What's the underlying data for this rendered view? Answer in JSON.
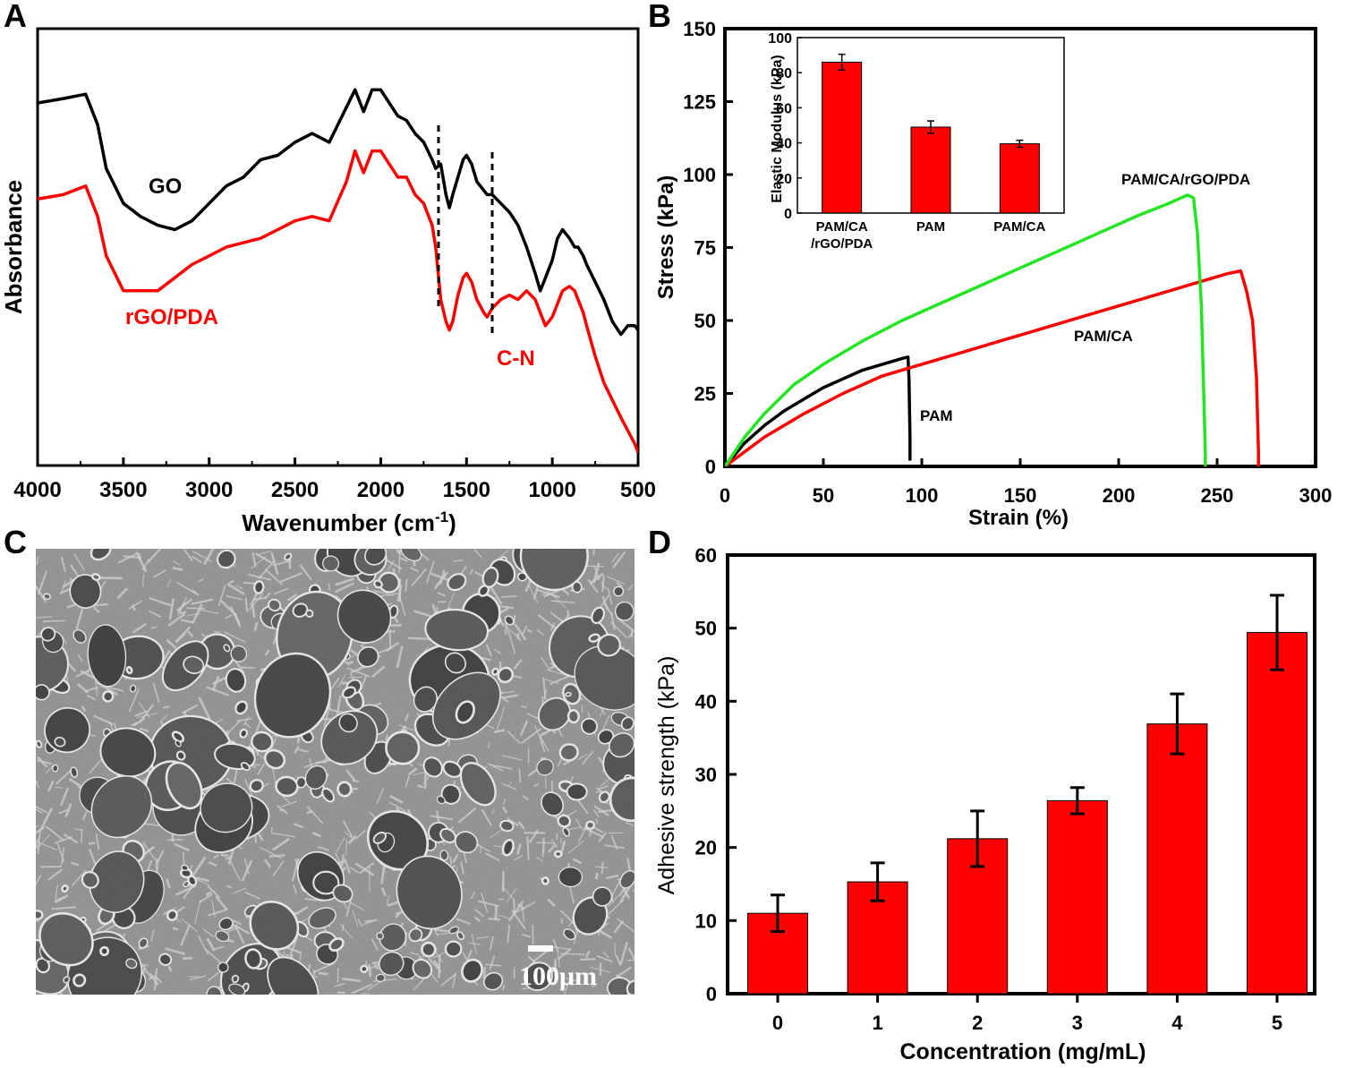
{
  "colors": {
    "red": "#ff0000",
    "black": "#000000",
    "green": "#22e622",
    "sem_background": "#8c8c8c",
    "sem_network": "#e2e2e2",
    "sem_pore": "#5a5a5a",
    "scalebar": "#ffffff"
  },
  "panels": {
    "A": {
      "letter": "A"
    },
    "B": {
      "letter": "B"
    },
    "C": {
      "letter": "C",
      "scale_bar_label": "100μm"
    },
    "D": {
      "letter": "D"
    }
  },
  "chart_data": [
    {
      "panel": "A",
      "type": "line",
      "title": "",
      "xlabel": "Wavenumber (cm",
      "xlabel_sup": "-1",
      "xlabel_tail": ")",
      "ylabel": "Absorbance",
      "xlim": [
        4000,
        500
      ],
      "x_reversed": true,
      "y_ticks_shown": false,
      "ylim": [
        0,
        1
      ],
      "x_ticks": [
        "4000",
        "3500",
        "3000",
        "2500",
        "2000",
        "1500",
        "1000",
        "500"
      ],
      "x_tick_values": [
        4000,
        3500,
        3000,
        2500,
        2000,
        1500,
        1000,
        500
      ],
      "series": [
        {
          "name": "GO",
          "color": "#000000",
          "x": [
            4000,
            3850,
            3720,
            3650,
            3600,
            3500,
            3400,
            3300,
            3200,
            3100,
            3000,
            2900,
            2800,
            2700,
            2600,
            2500,
            2400,
            2300,
            2200,
            2150,
            2100,
            2050,
            2000,
            1950,
            1900,
            1850,
            1800,
            1750,
            1700,
            1680,
            1650,
            1620,
            1600,
            1580,
            1550,
            1520,
            1500,
            1470,
            1440,
            1400,
            1380,
            1350,
            1300,
            1250,
            1200,
            1150,
            1100,
            1070,
            1040,
            1000,
            970,
            940,
            900,
            870,
            850,
            820,
            800,
            750,
            700,
            650,
            600,
            560,
            520,
            500
          ],
          "y": [
            0.83,
            0.84,
            0.85,
            0.78,
            0.68,
            0.6,
            0.57,
            0.55,
            0.54,
            0.56,
            0.6,
            0.64,
            0.66,
            0.7,
            0.71,
            0.74,
            0.76,
            0.74,
            0.82,
            0.86,
            0.81,
            0.86,
            0.86,
            0.83,
            0.8,
            0.79,
            0.76,
            0.74,
            0.7,
            0.68,
            0.69,
            0.62,
            0.59,
            0.62,
            0.66,
            0.7,
            0.71,
            0.69,
            0.65,
            0.63,
            0.62,
            0.62,
            0.6,
            0.58,
            0.55,
            0.5,
            0.44,
            0.4,
            0.43,
            0.47,
            0.52,
            0.54,
            0.52,
            0.5,
            0.5,
            0.48,
            0.46,
            0.42,
            0.38,
            0.33,
            0.3,
            0.32,
            0.32,
            0.31
          ]
        },
        {
          "name": "rGO/PDA",
          "color": "#ff0000",
          "x": [
            4000,
            3850,
            3720,
            3650,
            3600,
            3500,
            3400,
            3300,
            3200,
            3100,
            3000,
            2900,
            2800,
            2700,
            2600,
            2500,
            2400,
            2300,
            2200,
            2150,
            2100,
            2050,
            2000,
            1950,
            1900,
            1850,
            1800,
            1750,
            1700,
            1680,
            1650,
            1620,
            1600,
            1580,
            1550,
            1520,
            1500,
            1470,
            1440,
            1400,
            1380,
            1350,
            1300,
            1250,
            1200,
            1150,
            1100,
            1070,
            1040,
            1000,
            970,
            940,
            900,
            870,
            850,
            820,
            800,
            750,
            700,
            650,
            600,
            560,
            520,
            500
          ],
          "y": [
            0.61,
            0.62,
            0.64,
            0.57,
            0.48,
            0.4,
            0.4,
            0.4,
            0.43,
            0.46,
            0.48,
            0.5,
            0.51,
            0.52,
            0.54,
            0.56,
            0.57,
            0.56,
            0.65,
            0.72,
            0.67,
            0.72,
            0.72,
            0.69,
            0.66,
            0.66,
            0.62,
            0.6,
            0.55,
            0.5,
            0.38,
            0.33,
            0.31,
            0.33,
            0.39,
            0.43,
            0.44,
            0.42,
            0.38,
            0.35,
            0.34,
            0.36,
            0.38,
            0.39,
            0.38,
            0.4,
            0.38,
            0.35,
            0.32,
            0.34,
            0.37,
            0.4,
            0.41,
            0.4,
            0.38,
            0.35,
            0.32,
            0.25,
            0.19,
            0.15,
            0.11,
            0.08,
            0.05,
            0.03
          ]
        }
      ],
      "annotations": [
        {
          "text": "GO",
          "color": "#000000"
        },
        {
          "text": "rGO/PDA",
          "color": "#ff0000"
        },
        {
          "text": "C-N",
          "color": "#ff0000"
        }
      ],
      "dashed_markers_x": [
        1680,
        1370
      ]
    },
    {
      "panel": "B",
      "type": "line",
      "title": "",
      "xlabel": "Strain (%)",
      "ylabel": "Stress (kPa)",
      "xlim": [
        0,
        300
      ],
      "ylim": [
        0,
        150
      ],
      "x_ticks": [
        "0",
        "50",
        "100",
        "150",
        "200",
        "250",
        "300"
      ],
      "x_tick_values": [
        0,
        50,
        100,
        150,
        200,
        250,
        300
      ],
      "y_ticks": [
        "0",
        "25",
        "50",
        "75",
        "100",
        "125",
        "150"
      ],
      "y_tick_values": [
        0,
        25,
        50,
        75,
        100,
        125,
        150
      ],
      "series": [
        {
          "name": "PAM",
          "color": "#000000",
          "x": [
            0,
            5,
            10,
            20,
            30,
            40,
            50,
            60,
            70,
            80,
            90,
            93,
            93.5,
            94,
            94
          ],
          "y": [
            0,
            4,
            8,
            14,
            19,
            23,
            27,
            30,
            33,
            35,
            37,
            37.5,
            30,
            10,
            2
          ]
        },
        {
          "name": "PAM/CA",
          "color": "#ff0000",
          "x": [
            0,
            10,
            20,
            40,
            60,
            80,
            100,
            120,
            140,
            160,
            180,
            200,
            220,
            240,
            255,
            262,
            265,
            268,
            270,
            271,
            271
          ],
          "y": [
            0,
            5,
            10,
            18,
            25,
            31,
            35,
            39,
            43,
            47,
            51,
            55,
            59,
            63,
            66,
            67,
            60,
            50,
            30,
            5,
            0
          ]
        },
        {
          "name": "PAM/CA/rGO/PDA",
          "color": "#22e622",
          "x": [
            0,
            10,
            20,
            35,
            50,
            70,
            90,
            110,
            130,
            150,
            170,
            190,
            210,
            225,
            235,
            238,
            240,
            242,
            243,
            244,
            244
          ],
          "y": [
            0,
            10,
            18,
            28,
            35,
            43,
            50,
            56,
            62,
            68,
            74,
            80,
            86,
            90,
            93,
            92,
            80,
            55,
            30,
            5,
            0
          ]
        }
      ],
      "annotations": [
        {
          "text": "PAM/CA/rGO/PDA"
        },
        {
          "text": "PAM/CA"
        },
        {
          "text": "PAM"
        }
      ],
      "inset": {
        "type": "bar",
        "ylabel": "Elastic Modulus (kPa)",
        "ylim": [
          0,
          100
        ],
        "y_ticks": [
          "0",
          "20",
          "40",
          "60",
          "80",
          "100"
        ],
        "y_tick_values": [
          0,
          20,
          40,
          60,
          80,
          100
        ],
        "categories": [
          [
            "PAM/CA",
            "/rGO/PDA"
          ],
          [
            "PAM"
          ],
          [
            "PAM/CA"
          ]
        ],
        "values": [
          86,
          49,
          39.5
        ],
        "errors": [
          4.5,
          3.5,
          2
        ],
        "color": "#ff0000"
      }
    },
    {
      "panel": "D",
      "type": "bar",
      "title": "",
      "xlabel": "Concentration (mg/mL)",
      "ylabel": "Adhesive strength (kPa)",
      "ylim": [
        0,
        60
      ],
      "y_ticks": [
        "0",
        "10",
        "20",
        "30",
        "40",
        "50",
        "60"
      ],
      "y_tick_values": [
        0,
        10,
        20,
        30,
        40,
        50,
        60
      ],
      "categories": [
        "0",
        "1",
        "2",
        "3",
        "4",
        "5"
      ],
      "values": [
        11,
        15.3,
        21.2,
        26.4,
        36.9,
        49.4
      ],
      "errors": [
        2.5,
        2.6,
        3.8,
        1.8,
        4.1,
        5.1
      ],
      "color": "#ff0000"
    }
  ]
}
